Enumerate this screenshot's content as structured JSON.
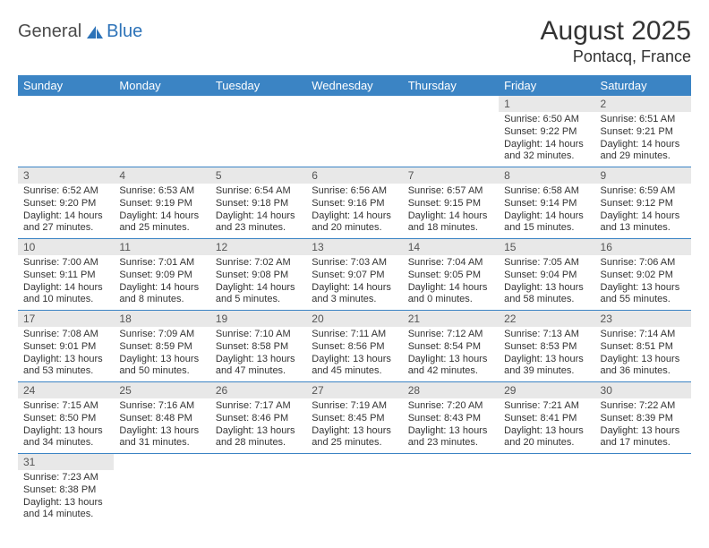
{
  "logo": {
    "text1": "General",
    "text2": "Blue"
  },
  "title": "August 2025",
  "subtitle": "Pontacq, France",
  "colors": {
    "header_bg": "#3b84c4",
    "header_text": "#ffffff",
    "daynum_bg": "#e8e8e8",
    "border": "#3b84c4",
    "logo_gray": "#4a4a4a",
    "logo_blue": "#2d73b8"
  },
  "weekdays": [
    "Sunday",
    "Monday",
    "Tuesday",
    "Wednesday",
    "Thursday",
    "Friday",
    "Saturday"
  ],
  "weeks": [
    [
      null,
      null,
      null,
      null,
      null,
      {
        "n": "1",
        "sr": "Sunrise: 6:50 AM",
        "ss": "Sunset: 9:22 PM",
        "d1": "Daylight: 14 hours",
        "d2": "and 32 minutes."
      },
      {
        "n": "2",
        "sr": "Sunrise: 6:51 AM",
        "ss": "Sunset: 9:21 PM",
        "d1": "Daylight: 14 hours",
        "d2": "and 29 minutes."
      }
    ],
    [
      {
        "n": "3",
        "sr": "Sunrise: 6:52 AM",
        "ss": "Sunset: 9:20 PM",
        "d1": "Daylight: 14 hours",
        "d2": "and 27 minutes."
      },
      {
        "n": "4",
        "sr": "Sunrise: 6:53 AM",
        "ss": "Sunset: 9:19 PM",
        "d1": "Daylight: 14 hours",
        "d2": "and 25 minutes."
      },
      {
        "n": "5",
        "sr": "Sunrise: 6:54 AM",
        "ss": "Sunset: 9:18 PM",
        "d1": "Daylight: 14 hours",
        "d2": "and 23 minutes."
      },
      {
        "n": "6",
        "sr": "Sunrise: 6:56 AM",
        "ss": "Sunset: 9:16 PM",
        "d1": "Daylight: 14 hours",
        "d2": "and 20 minutes."
      },
      {
        "n": "7",
        "sr": "Sunrise: 6:57 AM",
        "ss": "Sunset: 9:15 PM",
        "d1": "Daylight: 14 hours",
        "d2": "and 18 minutes."
      },
      {
        "n": "8",
        "sr": "Sunrise: 6:58 AM",
        "ss": "Sunset: 9:14 PM",
        "d1": "Daylight: 14 hours",
        "d2": "and 15 minutes."
      },
      {
        "n": "9",
        "sr": "Sunrise: 6:59 AM",
        "ss": "Sunset: 9:12 PM",
        "d1": "Daylight: 14 hours",
        "d2": "and 13 minutes."
      }
    ],
    [
      {
        "n": "10",
        "sr": "Sunrise: 7:00 AM",
        "ss": "Sunset: 9:11 PM",
        "d1": "Daylight: 14 hours",
        "d2": "and 10 minutes."
      },
      {
        "n": "11",
        "sr": "Sunrise: 7:01 AM",
        "ss": "Sunset: 9:09 PM",
        "d1": "Daylight: 14 hours",
        "d2": "and 8 minutes."
      },
      {
        "n": "12",
        "sr": "Sunrise: 7:02 AM",
        "ss": "Sunset: 9:08 PM",
        "d1": "Daylight: 14 hours",
        "d2": "and 5 minutes."
      },
      {
        "n": "13",
        "sr": "Sunrise: 7:03 AM",
        "ss": "Sunset: 9:07 PM",
        "d1": "Daylight: 14 hours",
        "d2": "and 3 minutes."
      },
      {
        "n": "14",
        "sr": "Sunrise: 7:04 AM",
        "ss": "Sunset: 9:05 PM",
        "d1": "Daylight: 14 hours",
        "d2": "and 0 minutes."
      },
      {
        "n": "15",
        "sr": "Sunrise: 7:05 AM",
        "ss": "Sunset: 9:04 PM",
        "d1": "Daylight: 13 hours",
        "d2": "and 58 minutes."
      },
      {
        "n": "16",
        "sr": "Sunrise: 7:06 AM",
        "ss": "Sunset: 9:02 PM",
        "d1": "Daylight: 13 hours",
        "d2": "and 55 minutes."
      }
    ],
    [
      {
        "n": "17",
        "sr": "Sunrise: 7:08 AM",
        "ss": "Sunset: 9:01 PM",
        "d1": "Daylight: 13 hours",
        "d2": "and 53 minutes."
      },
      {
        "n": "18",
        "sr": "Sunrise: 7:09 AM",
        "ss": "Sunset: 8:59 PM",
        "d1": "Daylight: 13 hours",
        "d2": "and 50 minutes."
      },
      {
        "n": "19",
        "sr": "Sunrise: 7:10 AM",
        "ss": "Sunset: 8:58 PM",
        "d1": "Daylight: 13 hours",
        "d2": "and 47 minutes."
      },
      {
        "n": "20",
        "sr": "Sunrise: 7:11 AM",
        "ss": "Sunset: 8:56 PM",
        "d1": "Daylight: 13 hours",
        "d2": "and 45 minutes."
      },
      {
        "n": "21",
        "sr": "Sunrise: 7:12 AM",
        "ss": "Sunset: 8:54 PM",
        "d1": "Daylight: 13 hours",
        "d2": "and 42 minutes."
      },
      {
        "n": "22",
        "sr": "Sunrise: 7:13 AM",
        "ss": "Sunset: 8:53 PM",
        "d1": "Daylight: 13 hours",
        "d2": "and 39 minutes."
      },
      {
        "n": "23",
        "sr": "Sunrise: 7:14 AM",
        "ss": "Sunset: 8:51 PM",
        "d1": "Daylight: 13 hours",
        "d2": "and 36 minutes."
      }
    ],
    [
      {
        "n": "24",
        "sr": "Sunrise: 7:15 AM",
        "ss": "Sunset: 8:50 PM",
        "d1": "Daylight: 13 hours",
        "d2": "and 34 minutes."
      },
      {
        "n": "25",
        "sr": "Sunrise: 7:16 AM",
        "ss": "Sunset: 8:48 PM",
        "d1": "Daylight: 13 hours",
        "d2": "and 31 minutes."
      },
      {
        "n": "26",
        "sr": "Sunrise: 7:17 AM",
        "ss": "Sunset: 8:46 PM",
        "d1": "Daylight: 13 hours",
        "d2": "and 28 minutes."
      },
      {
        "n": "27",
        "sr": "Sunrise: 7:19 AM",
        "ss": "Sunset: 8:45 PM",
        "d1": "Daylight: 13 hours",
        "d2": "and 25 minutes."
      },
      {
        "n": "28",
        "sr": "Sunrise: 7:20 AM",
        "ss": "Sunset: 8:43 PM",
        "d1": "Daylight: 13 hours",
        "d2": "and 23 minutes."
      },
      {
        "n": "29",
        "sr": "Sunrise: 7:21 AM",
        "ss": "Sunset: 8:41 PM",
        "d1": "Daylight: 13 hours",
        "d2": "and 20 minutes."
      },
      {
        "n": "30",
        "sr": "Sunrise: 7:22 AM",
        "ss": "Sunset: 8:39 PM",
        "d1": "Daylight: 13 hours",
        "d2": "and 17 minutes."
      }
    ],
    [
      {
        "n": "31",
        "sr": "Sunrise: 7:23 AM",
        "ss": "Sunset: 8:38 PM",
        "d1": "Daylight: 13 hours",
        "d2": "and 14 minutes."
      },
      null,
      null,
      null,
      null,
      null,
      null
    ]
  ]
}
